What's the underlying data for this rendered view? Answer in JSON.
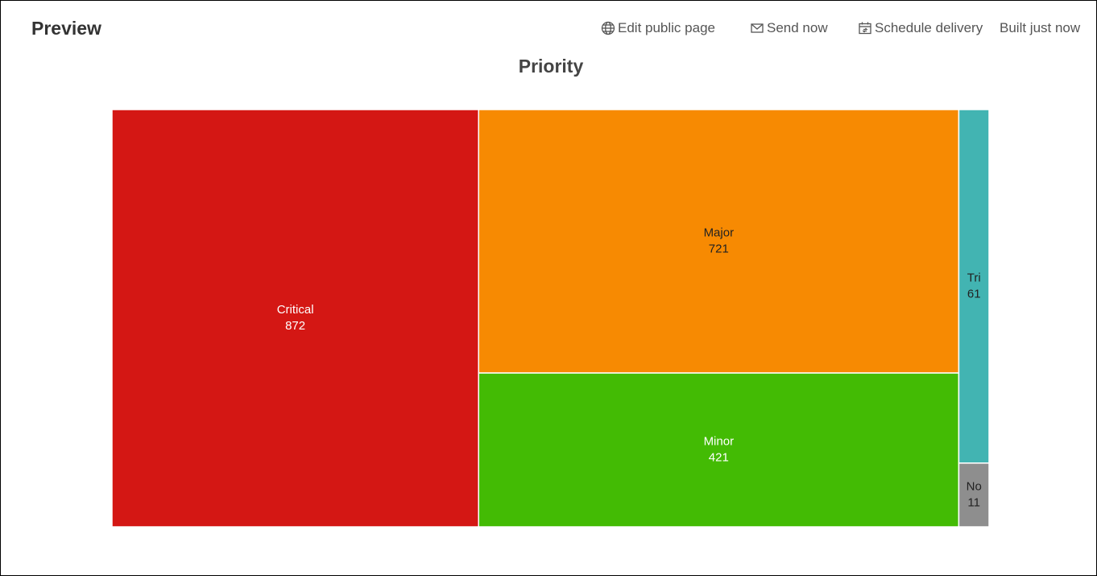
{
  "header": {
    "title": "Preview",
    "actions": [
      "Edit public page",
      "Send now",
      "Schedule delivery"
    ],
    "status": "Built just now"
  },
  "chart_data": {
    "type": "treemap",
    "title": "Priority",
    "categories": [
      "Critical",
      "Major",
      "Minor",
      "Tri",
      "No"
    ],
    "values": [
      872,
      721,
      421,
      61,
      11
    ],
    "colors": [
      "#d41714",
      "#f78a02",
      "#43bb04",
      "#42b4b2",
      "#8e8e8e"
    ],
    "label_colors": [
      "#ffffff",
      "#222222",
      "#ffffff",
      "#222222",
      "#222222"
    ]
  }
}
